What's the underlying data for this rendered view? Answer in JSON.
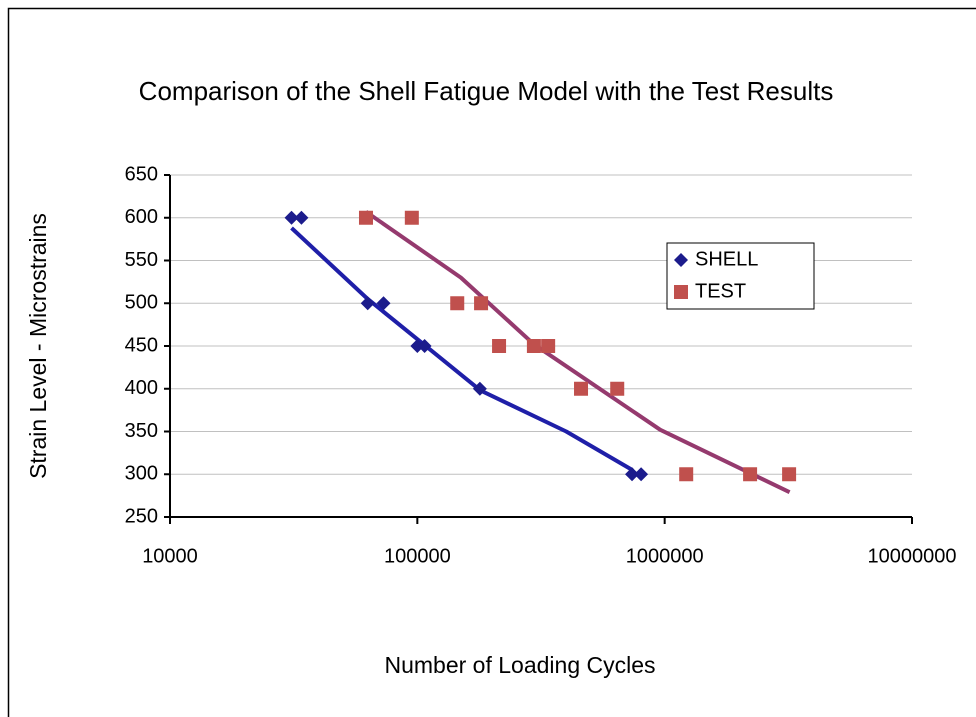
{
  "chart_data": {
    "type": "scatter",
    "title": "Comparison of the Shell Fatigue Model with the Test Results",
    "xlabel": "Number of Loading Cycles",
    "ylabel": "Strain Level - Microstrains",
    "xscale": "log",
    "xlim": [
      10000,
      10000000
    ],
    "xticks": [
      10000,
      100000,
      1000000,
      10000000
    ],
    "ylim": [
      250,
      650
    ],
    "yticks": [
      250,
      300,
      350,
      400,
      450,
      500,
      550,
      600,
      650
    ],
    "grid": true,
    "legend": "upper right",
    "series": [
      {
        "name": "SHELL",
        "color": "#1c1c8c",
        "marker": "diamond",
        "trend_color": "#1f1fa8",
        "x": [
          31000,
          34000,
          63000,
          73000,
          100000,
          107000,
          179000,
          738000,
          803000
        ],
        "values": [
          600,
          600,
          500,
          500,
          450,
          450,
          400,
          300,
          300
        ],
        "trend": {
          "x": [
            31000,
            63000,
            100000,
            180000,
            400000,
            740000
          ],
          "y": [
            588,
            505,
            458,
            398,
            350,
            305
          ]
        }
      },
      {
        "name": "TEST",
        "color": "#c0504d",
        "marker": "square",
        "trend_color": "#953a6e",
        "x": [
          62000,
          95000,
          145000,
          181000,
          214000,
          296000,
          338000,
          459000,
          643000,
          1222000,
          2215000,
          3185000
        ],
        "values": [
          600,
          600,
          500,
          500,
          450,
          450,
          450,
          400,
          400,
          300,
          300,
          300
        ],
        "trend": {
          "x": [
            62000,
            150000,
            296000,
            960000,
            3200000
          ],
          "y": [
            607,
            530,
            452,
            352,
            279
          ]
        }
      }
    ]
  }
}
